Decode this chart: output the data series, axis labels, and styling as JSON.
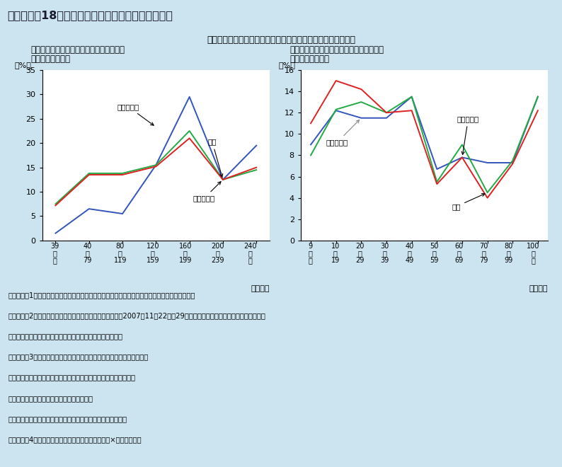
{
  "title": "第３－１－18図　独立志向副業実施者の本業と副業",
  "subtitle": "独立志向の高い副業者は特に本業において労働時間が長い傾向",
  "bg_color": "#cce4f0",
  "chart_bg": "#ffffff",
  "title_bg": "#aacfe8",
  "plot1": {
    "title_line1": "（１）副業者の本業の月間総労働時間分布",
    "title_line2": "（副業の理由別）",
    "ylabel": "（%）",
    "xlabel": "（時間）",
    "xtick_top": [
      "39",
      "40",
      "80",
      "120",
      "160",
      "200",
      "240"
    ],
    "xtick_mid": [
      "以",
      "～",
      "～",
      "～",
      "～",
      "～",
      "以"
    ],
    "xtick_bot": [
      "下",
      "79",
      "119",
      "159",
      "199",
      "239",
      "上"
    ],
    "ylim": [
      0,
      35
    ],
    "yticks": [
      0,
      5,
      10,
      15,
      20,
      25,
      30,
      35
    ],
    "series": {
      "独立したい": {
        "color": "#3355bb",
        "values": [
          1.5,
          6.5,
          5.5,
          15.5,
          29.5,
          12.5,
          19.5
        ]
      },
      "総計": {
        "color": "#22aa44",
        "values": [
          7.5,
          13.8,
          13.8,
          15.5,
          22.5,
          12.5,
          14.5
        ]
      },
      "金銭のため": {
        "color": "#dd2222",
        "values": [
          7.2,
          13.5,
          13.5,
          15.2,
          21.0,
          12.5,
          15.0
        ]
      }
    }
  },
  "plot2": {
    "title_line1": "（２）副業者の副業の月間総労働時間分布",
    "title_line2": "（副業の理由別）",
    "ylabel": "（%）",
    "xlabel": "（時間）",
    "xtick_top": [
      "9",
      "10",
      "20",
      "30",
      "40",
      "50",
      "60",
      "70",
      "80",
      "100"
    ],
    "xtick_mid": [
      "以",
      "～",
      "～",
      "～",
      "～",
      "～",
      "～",
      "～",
      "～",
      "以"
    ],
    "xtick_bot": [
      "下",
      "19",
      "29",
      "39",
      "49",
      "59",
      "69",
      "79",
      "99",
      "上"
    ],
    "ylim": [
      0,
      16
    ],
    "yticks": [
      0,
      2,
      4,
      6,
      8,
      10,
      12,
      14,
      16
    ],
    "series": {
      "独立したい": {
        "color": "#3355bb",
        "values": [
          9.0,
          12.2,
          11.5,
          11.5,
          13.5,
          6.7,
          7.8,
          7.3,
          7.3,
          13.5
        ]
      },
      "総計": {
        "color": "#22aa44",
        "values": [
          8.0,
          12.3,
          13.0,
          12.0,
          13.5,
          5.5,
          9.0,
          4.5,
          7.5,
          13.5
        ]
      },
      "金銭のため": {
        "color": "#dd2222",
        "values": [
          11.0,
          15.0,
          14.2,
          12.0,
          12.2,
          5.3,
          7.8,
          4.0,
          7.2,
          12.2
        ]
      }
    }
  },
  "notes_lines": [
    "（備考）　1．独立行政法人労働政策研究・研修機構「副業者の就労に関する調査」により作成。",
    "　　　　　2．「副業者の就労に関する調査」の調査期間は2007年11月22日～29日。１日当たり労働時間は直近の週、月間",
    "　　　　　　　労働日数は直近の月について調査している。",
    "　　　　　3．「金銭のため」は、次の選択肢をまとめて集計したもの。",
    "　　　　　　　・「１つの仕事だけでは生活自体が営めないから」",
    "　　　　　　　・「収入を増やしたいから」",
    "　　　　　　　・「ローンなど借金や負債を抱えているため」",
    "　　　　　4．月間総労働時間＝１日当たり労働時間×月間労働日数"
  ]
}
